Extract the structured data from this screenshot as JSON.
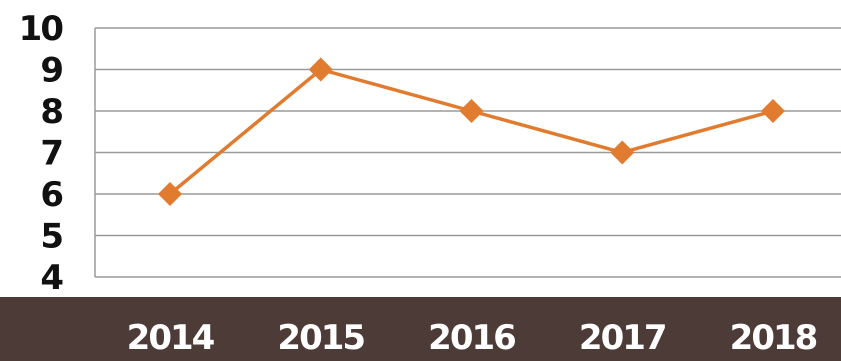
{
  "chart_data": {
    "type": "line",
    "title": "",
    "xlabel": "",
    "ylabel": "",
    "categories": [
      "2014",
      "2015",
      "2016",
      "2017",
      "2018"
    ],
    "series": [
      {
        "values": [
          6,
          9,
          8,
          7,
          8
        ],
        "color": "#e07b2f",
        "marker": "diamond"
      }
    ],
    "ylim": [
      4,
      10
    ],
    "yticks": [
      "10",
      "9",
      "8",
      "7",
      "6",
      "5",
      "4"
    ],
    "grid": true,
    "legend": "none",
    "colors": {
      "axis_band": "#4d3b38",
      "grid": "#9a9a9a"
    }
  }
}
